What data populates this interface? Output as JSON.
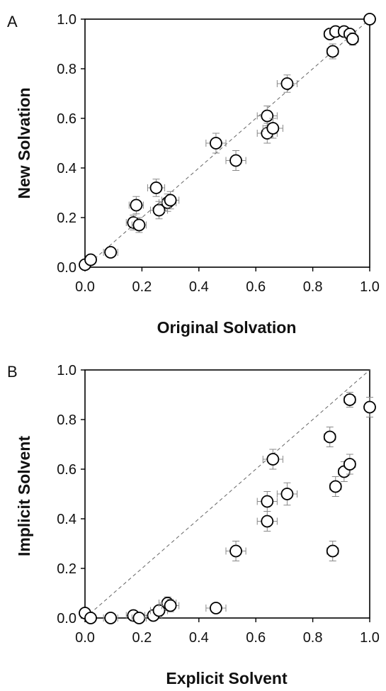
{
  "chart_data": [
    {
      "type": "scatter",
      "panel_label": "A",
      "xlabel": "Original Solvation",
      "ylabel": "New Solvation",
      "xlim": [
        0,
        1
      ],
      "ylim": [
        0,
        1
      ],
      "xticks": [
        "0.0",
        "0.2",
        "0.4",
        "0.6",
        "0.8",
        "1.0"
      ],
      "yticks": [
        "0.0",
        "0.2",
        "0.4",
        "0.6",
        "0.8",
        "1.0"
      ],
      "reference_line": "y = x (dashed)",
      "grid": false,
      "marker": "open circle with error bars",
      "error_bar_color": "#888888",
      "points": [
        {
          "x": 0.0,
          "y": 0.01,
          "xerr": 0.0,
          "yerr": 0.0
        },
        {
          "x": 0.02,
          "y": 0.03,
          "xerr": 0.015,
          "yerr": 0.015
        },
        {
          "x": 0.09,
          "y": 0.06,
          "xerr": 0.025,
          "yerr": 0.02
        },
        {
          "x": 0.17,
          "y": 0.18,
          "xerr": 0.025,
          "yerr": 0.03
        },
        {
          "x": 0.18,
          "y": 0.25,
          "xerr": 0.025,
          "yerr": 0.035
        },
        {
          "x": 0.19,
          "y": 0.17,
          "xerr": 0.025,
          "yerr": 0.03
        },
        {
          "x": 0.25,
          "y": 0.32,
          "xerr": 0.03,
          "yerr": 0.035
        },
        {
          "x": 0.26,
          "y": 0.23,
          "xerr": 0.03,
          "yerr": 0.035
        },
        {
          "x": 0.29,
          "y": 0.26,
          "xerr": 0.03,
          "yerr": 0.035
        },
        {
          "x": 0.3,
          "y": 0.27,
          "xerr": 0.03,
          "yerr": 0.035
        },
        {
          "x": 0.46,
          "y": 0.5,
          "xerr": 0.035,
          "yerr": 0.04
        },
        {
          "x": 0.53,
          "y": 0.43,
          "xerr": 0.035,
          "yerr": 0.04
        },
        {
          "x": 0.64,
          "y": 0.61,
          "xerr": 0.035,
          "yerr": 0.04
        },
        {
          "x": 0.64,
          "y": 0.54,
          "xerr": 0.035,
          "yerr": 0.04
        },
        {
          "x": 0.66,
          "y": 0.56,
          "xerr": 0.035,
          "yerr": 0.04
        },
        {
          "x": 0.71,
          "y": 0.74,
          "xerr": 0.035,
          "yerr": 0.035
        },
        {
          "x": 0.86,
          "y": 0.94,
          "xerr": 0.02,
          "yerr": 0.02
        },
        {
          "x": 0.87,
          "y": 0.87,
          "xerr": 0.02,
          "yerr": 0.03
        },
        {
          "x": 0.88,
          "y": 0.95,
          "xerr": 0.02,
          "yerr": 0.02
        },
        {
          "x": 0.91,
          "y": 0.95,
          "xerr": 0.02,
          "yerr": 0.02
        },
        {
          "x": 0.93,
          "y": 0.94,
          "xerr": 0.02,
          "yerr": 0.02
        },
        {
          "x": 0.94,
          "y": 0.92,
          "xerr": 0.02,
          "yerr": 0.025
        },
        {
          "x": 1.0,
          "y": 1.0,
          "xerr": 0.0,
          "yerr": 0.0
        }
      ]
    },
    {
      "type": "scatter",
      "panel_label": "B",
      "xlabel": "Explicit Solvent",
      "ylabel": "Implicit Solvent",
      "xlim": [
        0,
        1
      ],
      "ylim": [
        0,
        1
      ],
      "xticks": [
        "0.0",
        "0.2",
        "0.4",
        "0.6",
        "0.8",
        "1.0"
      ],
      "yticks": [
        "0.0",
        "0.2",
        "0.4",
        "0.6",
        "0.8",
        "1.0"
      ],
      "reference_line": "y = x (dashed)",
      "grid": false,
      "marker": "open circle with error bars",
      "error_bar_color": "#888888",
      "points": [
        {
          "x": 0.0,
          "y": 0.02,
          "xerr": 0.0,
          "yerr": 0.0
        },
        {
          "x": 0.02,
          "y": 0.0,
          "xerr": 0.015,
          "yerr": 0.01
        },
        {
          "x": 0.09,
          "y": 0.0,
          "xerr": 0.025,
          "yerr": 0.01
        },
        {
          "x": 0.17,
          "y": 0.01,
          "xerr": 0.025,
          "yerr": 0.015
        },
        {
          "x": 0.19,
          "y": 0.0,
          "xerr": 0.025,
          "yerr": 0.01
        },
        {
          "x": 0.24,
          "y": 0.01,
          "xerr": 0.03,
          "yerr": 0.015
        },
        {
          "x": 0.26,
          "y": 0.03,
          "xerr": 0.03,
          "yerr": 0.02
        },
        {
          "x": 0.29,
          "y": 0.06,
          "xerr": 0.03,
          "yerr": 0.025
        },
        {
          "x": 0.3,
          "y": 0.05,
          "xerr": 0.03,
          "yerr": 0.025
        },
        {
          "x": 0.46,
          "y": 0.04,
          "xerr": 0.035,
          "yerr": 0.02
        },
        {
          "x": 0.53,
          "y": 0.27,
          "xerr": 0.035,
          "yerr": 0.04
        },
        {
          "x": 0.64,
          "y": 0.47,
          "xerr": 0.035,
          "yerr": 0.04
        },
        {
          "x": 0.64,
          "y": 0.39,
          "xerr": 0.035,
          "yerr": 0.04
        },
        {
          "x": 0.66,
          "y": 0.64,
          "xerr": 0.035,
          "yerr": 0.04
        },
        {
          "x": 0.71,
          "y": 0.5,
          "xerr": 0.035,
          "yerr": 0.045
        },
        {
          "x": 0.86,
          "y": 0.73,
          "xerr": 0.02,
          "yerr": 0.04
        },
        {
          "x": 0.87,
          "y": 0.27,
          "xerr": 0.02,
          "yerr": 0.04
        },
        {
          "x": 0.88,
          "y": 0.53,
          "xerr": 0.02,
          "yerr": 0.04
        },
        {
          "x": 0.91,
          "y": 0.59,
          "xerr": 0.02,
          "yerr": 0.04
        },
        {
          "x": 0.93,
          "y": 0.62,
          "xerr": 0.02,
          "yerr": 0.04
        },
        {
          "x": 0.93,
          "y": 0.88,
          "xerr": 0.02,
          "yerr": 0.03
        },
        {
          "x": 1.0,
          "y": 0.85,
          "xerr": 0.0,
          "yerr": 0.04
        }
      ]
    }
  ]
}
